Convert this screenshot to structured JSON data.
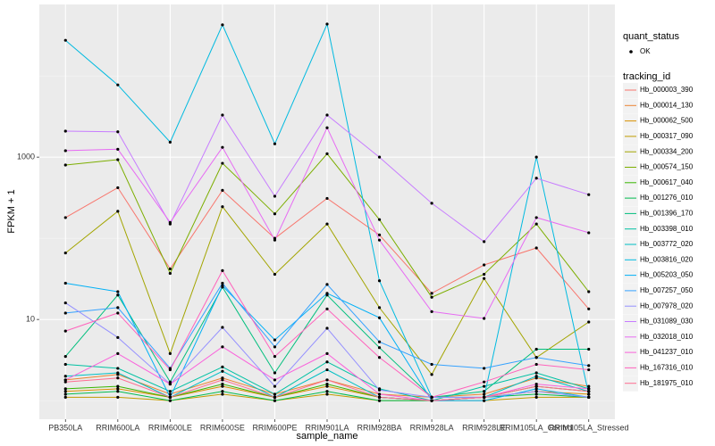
{
  "chart_data": {
    "type": "line",
    "y_label": "FPKM + 1",
    "x_label": "sample_name",
    "legend_points_title": "quant_status",
    "legend_points_label": "OK",
    "legend_title": "tracking_id",
    "log_y": true,
    "ylim": [
      0.59,
      76000
    ],
    "yticks": [
      10,
      1000
    ],
    "minor_grid": [
      1,
      100,
      10000
    ],
    "point_color": "#000000",
    "legend_position": "right",
    "categories": [
      "PB350LA",
      "RRIM600LA",
      "RRIM600LE",
      "RRIM600SE",
      "RRIM600PE",
      "RRIM901LA",
      "RRIM928BA",
      "RRIM928LA",
      "RRIM928LE",
      "RRIM105LA_Control",
      "RRIM105LA_Stressed"
    ],
    "series": [
      {
        "name": "Hb_000003_390",
        "color": "#F8766D",
        "values": [
          180,
          420,
          42,
          390,
          100,
          310,
          110,
          21,
          47,
          76,
          13.5
        ]
      },
      {
        "name": "Hb_000014_130",
        "color": "#EA8331",
        "values": [
          1.8,
          2.1,
          1.2,
          1.9,
          1.2,
          1.8,
          1.2,
          1.1,
          1.2,
          1.9,
          1.5
        ]
      },
      {
        "name": "Hb_000062_500",
        "color": "#D89000",
        "values": [
          1.3,
          1.4,
          1.1,
          1.5,
          1.1,
          1.5,
          1.1,
          1,
          1.1,
          1.3,
          1.2
        ]
      },
      {
        "name": "Hb_000317_090",
        "color": "#C09B00",
        "values": [
          1.1,
          1.1,
          1,
          1.2,
          1,
          1.2,
          1,
          1,
          1,
          1.1,
          1.1
        ]
      },
      {
        "name": "Hb_000334_200",
        "color": "#A3A500",
        "values": [
          66,
          215,
          3.8,
          245,
          36,
          150,
          14,
          2.1,
          32,
          3.4,
          9.3
        ]
      },
      {
        "name": "Hb_000574_150",
        "color": "#7CAE00",
        "values": [
          800,
          930,
          37,
          840,
          200,
          1100,
          170,
          18.8,
          36,
          150,
          22
        ]
      },
      {
        "name": "Hb_000617_040",
        "color": "#39B600",
        "values": [
          1.4,
          1.5,
          1.1,
          1.6,
          1.1,
          1.6,
          1.1,
          1,
          1.1,
          1.5,
          1.3
        ]
      },
      {
        "name": "Hb_001276_010",
        "color": "#00BB4E",
        "values": [
          1.2,
          1.3,
          1,
          1.3,
          1,
          1.3,
          1,
          1,
          1.1,
          1.2,
          1.1
        ]
      },
      {
        "name": "Hb_001396_170",
        "color": "#00BF7D",
        "values": [
          3.5,
          20,
          1.7,
          25,
          2.2,
          20,
          4.5,
          1.1,
          1.3,
          4.3,
          4.3
        ]
      },
      {
        "name": "Hb_003398_010",
        "color": "#00C1A3",
        "values": [
          2.8,
          2.5,
          1.3,
          2.6,
          1.2,
          3.0,
          1.4,
          1.0,
          1.5,
          2.2,
          1.4
        ]
      },
      {
        "name": "Hb_003772_020",
        "color": "#00BFC4",
        "values": [
          2.0,
          2.2,
          1.1,
          2.3,
          1.1,
          2.4,
          1.1,
          1,
          1.1,
          2.0,
          1.3
        ]
      },
      {
        "name": "Hb_003816_020",
        "color": "#00BAE0",
        "values": [
          27500,
          7760,
          1530,
          42600,
          1460,
          43600,
          30,
          1.1,
          1.1,
          1000,
          1.2
        ]
      },
      {
        "name": "Hb_005203_050",
        "color": "#00B0F6",
        "values": [
          28,
          22,
          1.1,
          26,
          5.6,
          21,
          10.5,
          1,
          1,
          1.4,
          1.1
        ]
      },
      {
        "name": "Hb_007257_050",
        "color": "#35A2FF",
        "values": [
          12,
          14,
          2.5,
          28,
          4.6,
          27,
          5.3,
          2.8,
          2.5,
          3.4,
          2.7
        ]
      },
      {
        "name": "Hb_007978_020",
        "color": "#9590FF",
        "values": [
          16,
          6,
          1.6,
          8,
          1.5,
          7.8,
          1.35,
          1.1,
          1.1,
          1.3,
          1.1
        ]
      },
      {
        "name": "Hb_031089_030",
        "color": "#C77CFF",
        "values": [
          2090,
          2050,
          150,
          3300,
          330,
          3300,
          1000,
          270,
          91,
          550,
          345
        ]
      },
      {
        "name": "Hb_032018_010",
        "color": "#E76BF3",
        "values": [
          1200,
          1250,
          157,
          1320,
          95,
          2300,
          95,
          12.5,
          10.3,
          180,
          117
        ]
      },
      {
        "name": "Hb_041237_010",
        "color": "#FA62DB",
        "values": [
          1.8,
          3.8,
          1.6,
          4.6,
          1.8,
          3.8,
          1.2,
          1,
          1.1,
          1.6,
          1.4
        ]
      },
      {
        "name": "Hb_167316_010",
        "color": "#FF62BC",
        "values": [
          7.2,
          12,
          2.4,
          40,
          3.5,
          13.5,
          3.4,
          1.1,
          1.7,
          2.8,
          2.4
        ]
      },
      {
        "name": "Hb_181975_010",
        "color": "#FF6C91",
        "values": [
          1.7,
          1.9,
          1.1,
          1.8,
          1.1,
          1.8,
          1.1,
          1,
          1.1,
          1.5,
          1.3
        ]
      }
    ]
  }
}
